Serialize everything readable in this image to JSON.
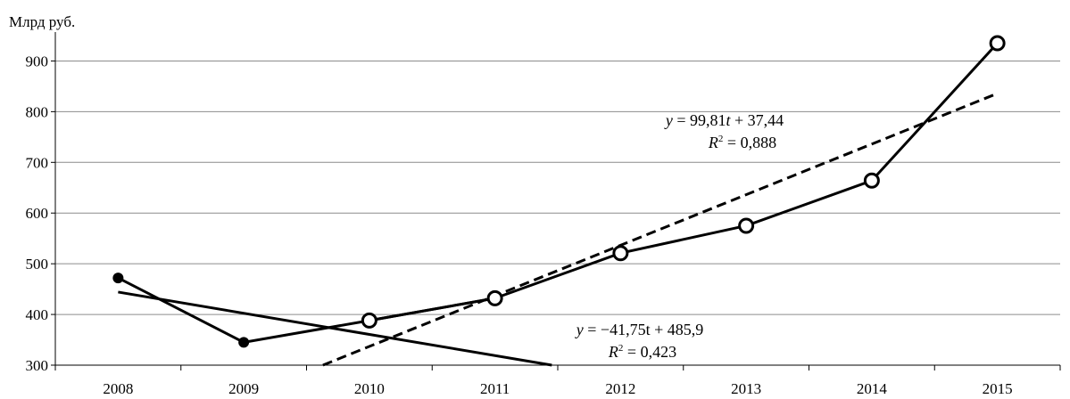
{
  "chart_data": {
    "type": "line",
    "ylabel": "Млрд руб.",
    "x": [
      "2008",
      "2009",
      "2010",
      "2011",
      "2012",
      "2013",
      "2014",
      "2015"
    ],
    "ylim": [
      300,
      950
    ],
    "yticks": [
      300,
      400,
      500,
      600,
      700,
      800,
      900
    ],
    "grid": "horizontal",
    "series": [
      {
        "x": [
          "2008",
          "2009",
          "2010",
          "2011"
        ],
        "values": [
          472,
          345,
          388,
          432
        ],
        "marker": "filled-circle"
      },
      {
        "x": [
          "2010",
          "2011",
          "2012",
          "2013",
          "2014",
          "2015"
        ],
        "values": [
          388,
          432,
          521,
          575,
          664,
          935
        ],
        "marker": "open-circle"
      }
    ],
    "trendlines": [
      {
        "style": "solid",
        "slope": -41.75,
        "intercept": 485.9,
        "t_start": 1,
        "t_end": 4.55
      },
      {
        "style": "dashed",
        "slope": 99.81,
        "intercept": 37.44,
        "t_start": 2.6,
        "t_end": 8
      }
    ],
    "annotations": {
      "eq1": {
        "y": "y",
        "rhs": " = 99,81",
        "t": "t",
        "tail": " + 37,44",
        "r": "R",
        "sup": "2",
        "rtail": " = 0,888"
      },
      "eq2": {
        "y": "y",
        "rhs": " = −41,75t + 485,9",
        "r": "R",
        "sup": "2",
        "rtail": " = 0,423"
      }
    }
  }
}
